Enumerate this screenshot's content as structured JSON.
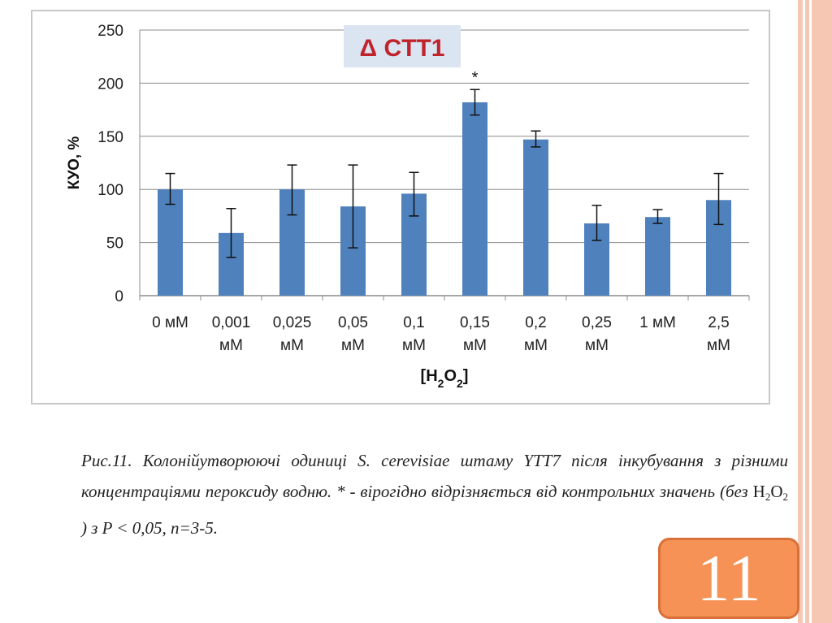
{
  "slide": {
    "page_number": "11",
    "accent_color": "#f79256",
    "border_color": "#f6c7b3"
  },
  "chart_data": {
    "type": "bar",
    "title": "Δ CTT1",
    "xlabel": "[H2O2]",
    "ylabel": "КУО, %",
    "ylim": [
      0,
      250
    ],
    "yticks": [
      "0",
      "50",
      "100",
      "150",
      "200",
      "250"
    ],
    "grid": true,
    "bar_color": "#4f81bd",
    "categories": [
      [
        "0 мМ"
      ],
      [
        "0,001",
        "мМ"
      ],
      [
        "0,025",
        "мМ"
      ],
      [
        "0,05",
        "мМ"
      ],
      [
        "0,1",
        "мМ"
      ],
      [
        "0,15",
        "мМ"
      ],
      [
        "0,2",
        "мМ"
      ],
      [
        "0,25",
        "мМ"
      ],
      [
        "1 мМ"
      ],
      [
        "2,5",
        "мМ"
      ]
    ],
    "values": [
      100,
      59,
      100,
      84,
      96,
      182,
      147,
      68,
      74,
      90
    ],
    "error_high": [
      115,
      82,
      123,
      123,
      116,
      194,
      155,
      85,
      81,
      115
    ],
    "error_low": [
      86,
      36,
      76,
      45,
      75,
      170,
      140,
      52,
      68,
      67
    ],
    "annotations": [
      {
        "category_index": 5,
        "text": "*"
      }
    ]
  },
  "caption": {
    "prefix": "Рис.11. Колонійутворюючі одиниці ",
    "species": "S. cerevisiae",
    "mid": " штаму YTT7 після інкубування з різними концентраціями пероксиду водню. * - вірогідно відрізняється від контрольних значень (без ",
    "compound_base": "H",
    "compound_sub1": "2",
    "compound_mid": "O",
    "compound_sub2": "2",
    "suffix": " ) з P < 0,05, n=3-5."
  }
}
